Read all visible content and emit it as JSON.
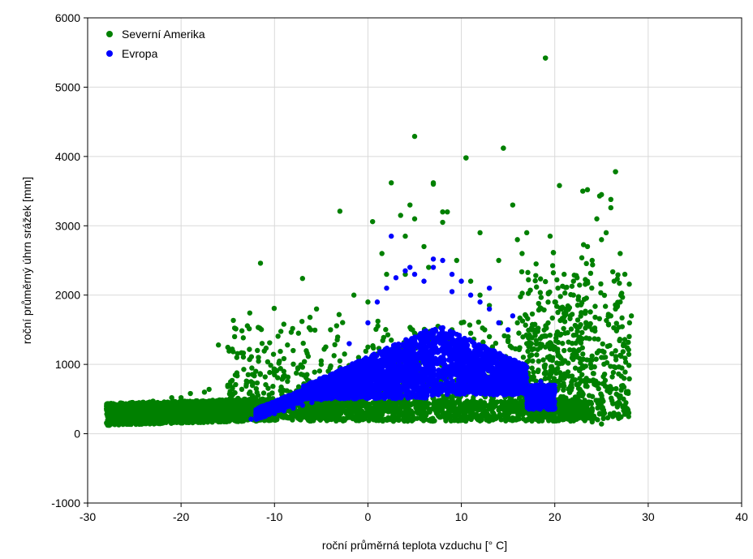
{
  "chart_data": {
    "type": "scatter",
    "xlabel": "roční průměrná teplota vzduchu [° C]",
    "ylabel": "roční průměrný úhrn srážek [mm]",
    "xlim": [
      -30,
      40
    ],
    "ylim": [
      -1000,
      6000
    ],
    "xticks": [
      -30,
      -20,
      -10,
      0,
      10,
      20,
      30,
      40
    ],
    "yticks": [
      -1000,
      0,
      1000,
      2000,
      3000,
      4000,
      5000,
      6000
    ],
    "xtick_labels": [
      "-30",
      "-20",
      "-10",
      "0",
      "10",
      "20",
      "30",
      "40"
    ],
    "ytick_labels": [
      "-1000",
      "0",
      "1000",
      "2000",
      "3000",
      "4000",
      "5000",
      "6000"
    ],
    "grid": true,
    "legend_position": "top-left",
    "series": [
      {
        "name": "Severní Amerika",
        "color": "#008000",
        "x": [
          -27,
          -26,
          -24,
          -22,
          -20,
          -18,
          -16,
          -14,
          -12,
          -10,
          -8,
          -6,
          -4,
          -2,
          0,
          2,
          4,
          6,
          8,
          10,
          12,
          14,
          16,
          18,
          20,
          22,
          24,
          25,
          -26,
          -23,
          -21,
          -19,
          -17,
          -15,
          -13,
          -11,
          -9,
          -7,
          -5,
          -3,
          -1,
          1,
          3,
          5,
          7,
          9,
          11,
          13,
          15,
          17,
          19,
          21,
          23,
          25,
          -27.5,
          -25,
          -22.5,
          -20,
          -17.5,
          -15,
          -12.5,
          -10,
          -7.5,
          -5,
          -2.5,
          0,
          2.5,
          5,
          7.5,
          10,
          12.5,
          15,
          17.5,
          20,
          22.5,
          24,
          26,
          27,
          28,
          -11.5,
          -16,
          -9,
          -7,
          -5.5,
          -3,
          -1.5,
          0.5,
          1.5,
          2,
          3.5,
          4,
          4.5,
          5,
          6,
          6.5,
          7,
          8.5,
          9.5,
          10.5,
          11,
          12,
          13,
          14,
          14.5,
          15.5,
          16,
          16.5,
          17,
          18,
          19,
          19.5,
          20.5,
          21,
          22,
          23,
          23.5,
          24.5,
          25,
          25.5,
          26,
          26.5,
          27,
          27.5,
          28.2,
          -12,
          -8,
          -4,
          0,
          4,
          8,
          12,
          16,
          18,
          20,
          22,
          24,
          25,
          26,
          26.5
        ],
        "y": [
          180,
          220,
          250,
          280,
          300,
          320,
          330,
          320,
          300,
          310,
          330,
          340,
          350,
          360,
          380,
          400,
          390,
          380,
          370,
          360,
          350,
          340,
          330,
          300,
          250,
          200,
          170,
          140,
          420,
          470,
          520,
          580,
          640,
          700,
          760,
          820,
          900,
          960,
          1000,
          1050,
          1100,
          1150,
          1200,
          1300,
          1400,
          1500,
          1450,
          1400,
          1350,
          1300,
          1250,
          1200,
          1150,
          1100,
          300,
          380,
          450,
          520,
          600,
          680,
          750,
          850,
          950,
          1050,
          1150,
          1250,
          1350,
          1450,
          1550,
          1600,
          1500,
          1400,
          1300,
          1250,
          1350,
          1500,
          1700,
          1900,
          1600,
          2460,
          1280,
          1580,
          2240,
          1800,
          3210,
          2000,
          3060,
          2600,
          2300,
          3150,
          2850,
          3300,
          3100,
          2700,
          2400,
          3600,
          3200,
          2500,
          3980,
          2200,
          2000,
          1850,
          2500,
          4120,
          3300,
          2800,
          2600,
          2900,
          2450,
          5420,
          2850,
          3580,
          2300,
          2000,
          3500,
          2700,
          3100,
          3450,
          2900,
          3260,
          3780,
          2600,
          2300,
          1700,
          900,
          1200,
          1500,
          1900,
          2300,
          3050,
          2900,
          1600,
          1500,
          1900,
          2200,
          2500,
          2800,
          3380,
          1800
        ],
        "extra_x": [
          5,
          10.5,
          14.5,
          19,
          26.5,
          2.5,
          7,
          8,
          23.5,
          24.8
        ],
        "extra_y": [
          4290,
          3980,
          4120,
          5420,
          3780,
          3620,
          3620,
          3200,
          3520,
          3430
        ]
      },
      {
        "name": "Evropa",
        "color": "#0000ff",
        "x": [
          -12.5,
          -11,
          -10,
          -9,
          -8,
          -7,
          -6,
          -5,
          -4,
          -3,
          -2,
          -1,
          0,
          1,
          2,
          3,
          4,
          5,
          6,
          7,
          8,
          9,
          10,
          11,
          12,
          13,
          14,
          15,
          16,
          17,
          18,
          19,
          20,
          -11.5,
          -9.5,
          -7.5,
          -5.5,
          -3.5,
          -1.5,
          0.5,
          2.5,
          4.5,
          6.5,
          8.5,
          10.5,
          12.5,
          14.5,
          16.5,
          18.5,
          19.5,
          -2,
          0,
          1,
          2,
          3,
          4,
          5,
          6,
          7,
          8,
          9,
          10,
          11,
          12,
          13,
          14,
          15
        ],
        "y": [
          210,
          250,
          290,
          330,
          370,
          410,
          450,
          490,
          520,
          560,
          600,
          640,
          680,
          700,
          720,
          740,
          760,
          780,
          800,
          820,
          840,
          860,
          820,
          780,
          740,
          700,
          660,
          620,
          580,
          560,
          540,
          560,
          640,
          280,
          360,
          440,
          520,
          600,
          700,
          800,
          900,
          1000,
          1100,
          1200,
          1150,
          1050,
          950,
          850,
          750,
          700,
          1300,
          1600,
          1900,
          2100,
          2250,
          2350,
          2300,
          2200,
          2400,
          2500,
          2300,
          2200,
          2000,
          1900,
          1800,
          1600,
          1500
        ],
        "extra_x": [
          2.5,
          4.5,
          7,
          9,
          13,
          15.5
        ],
        "extra_y": [
          2850,
          2400,
          2520,
          2050,
          2100,
          1700
        ]
      }
    ]
  }
}
